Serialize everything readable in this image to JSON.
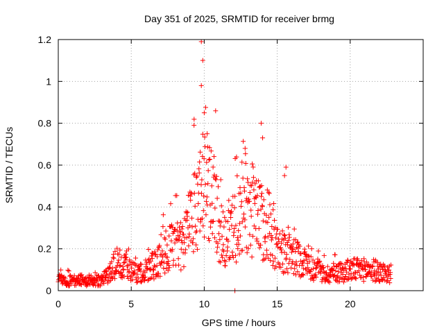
{
  "chart_data": {
    "type": "scatter",
    "title": "Day 351 of 2025, SRMTID for receiver brmg",
    "xlabel": "GPS time / hours",
    "ylabel": "SRMTID / TECUs",
    "xlim": [
      0,
      25
    ],
    "ylim": [
      0,
      1.2
    ],
    "xticks": [
      0,
      5,
      10,
      15,
      20
    ],
    "yticks": [
      0,
      0.2,
      0.4,
      0.6,
      0.8,
      1,
      1.2
    ],
    "xtick_labels": [
      "0",
      "5",
      "10",
      "15",
      "20"
    ],
    "ytick_labels": [
      "0",
      "0.2",
      "0.4",
      "0.6",
      "0.8",
      "1",
      "1.2"
    ],
    "grid": true,
    "marker": "plus",
    "series_color": "#ff0000",
    "series": [
      {
        "name": "SRMTID",
        "data_range_hours": [
          0,
          22.8
        ],
        "profile_hours": [
          0,
          1,
          2,
          3,
          3.5,
          4,
          4.5,
          5,
          5.5,
          6,
          6.5,
          7,
          7.5,
          8,
          8.5,
          9,
          9.3,
          9.6,
          9.9,
          10.2,
          10.5,
          10.8,
          11,
          11.3,
          11.6,
          12,
          12.3,
          12.6,
          13,
          13.4,
          13.8,
          14.1,
          14.5,
          15,
          15.5,
          16,
          16.5,
          17,
          17.5,
          18,
          18.5,
          19,
          19.5,
          20,
          20.5,
          21,
          21.5,
          22,
          22.8
        ],
        "profile_median": [
          0.05,
          0.05,
          0.05,
          0.05,
          0.08,
          0.14,
          0.12,
          0.09,
          0.08,
          0.1,
          0.12,
          0.15,
          0.2,
          0.21,
          0.22,
          0.3,
          0.4,
          0.45,
          0.5,
          0.45,
          0.45,
          0.4,
          0.3,
          0.25,
          0.25,
          0.3,
          0.3,
          0.35,
          0.35,
          0.35,
          0.35,
          0.3,
          0.25,
          0.2,
          0.18,
          0.17,
          0.15,
          0.13,
          0.1,
          0.08,
          0.08,
          0.09,
          0.09,
          0.1,
          0.1,
          0.1,
          0.1,
          0.09,
          0.08
        ],
        "peaks": [
          {
            "x": 9.3,
            "y": 0.79
          },
          {
            "x": 9.8,
            "y": 1.19
          },
          {
            "x": 9.9,
            "y": 1.1
          },
          {
            "x": 9.8,
            "y": 0.98
          },
          {
            "x": 10,
            "y": 0.85
          },
          {
            "x": 10.2,
            "y": 0.75
          },
          {
            "x": 12.1,
            "y": 0.0
          },
          {
            "x": 12.8,
            "y": 0.68
          },
          {
            "x": 13.9,
            "y": 0.8
          },
          {
            "x": 14.0,
            "y": 0.73
          },
          {
            "x": 15.6,
            "y": 0.59
          },
          {
            "x": 15.5,
            "y": 0.55
          }
        ]
      }
    ]
  }
}
